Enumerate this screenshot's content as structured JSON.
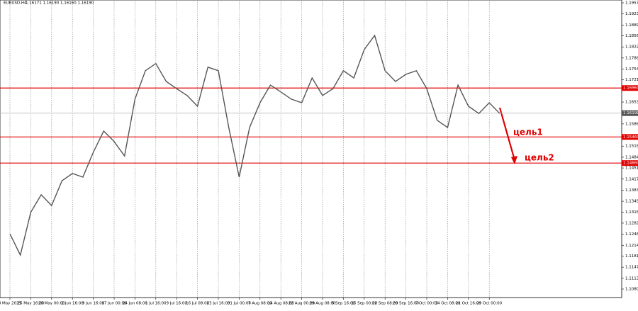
{
  "chart_data": {
    "type": "line",
    "title": "EURUSD,H4",
    "subtitle": "1.16171 1.16190 1.16160 1.16190",
    "color": "#555555",
    "categories": [
      "8 May 2025",
      null,
      "16 May 16:00",
      null,
      "26 May 00:00",
      null,
      "2 Jun 16:00",
      null,
      "9 Jun 16:00",
      null,
      "17 Jun 00:00",
      null,
      "24 Jun 08:00",
      null,
      "1 Jul 16:00",
      null,
      "9 Jul 16:00",
      null,
      "16 Jul 08:00",
      null,
      "23 Jul 16:00",
      null,
      "31 Jul 00:00",
      null,
      "7 Aug 08:00",
      null,
      "14 Aug 08:00",
      null,
      "22 Aug 00:00",
      null,
      "29 Aug 08:00",
      null,
      "5 Sep 16:00",
      null,
      "15 Sep 00:00",
      null,
      "22 Sep 08:00",
      null,
      "29 Sep 16:00",
      null,
      "7 Oct 00:00",
      null,
      "14 Oct 08:00",
      null,
      "21 Oct 16:00",
      null,
      "29 Oct 00:00",
      null
    ],
    "values": [
      1.1249,
      1.1184,
      1.1315,
      1.1369,
      1.1336,
      1.1412,
      1.1434,
      1.1423,
      1.1499,
      1.1564,
      1.1532,
      1.1488,
      1.1662,
      1.1749,
      1.1771,
      1.1716,
      1.1694,
      1.1673,
      1.164,
      1.176,
      1.1749,
      1.1575,
      1.1423,
      1.1575,
      1.1651,
      1.1705,
      1.1684,
      1.1662,
      1.1651,
      1.1727,
      1.1673,
      1.1694,
      1.1749,
      1.1727,
      1.1814,
      1.1857,
      1.1749,
      1.1716,
      1.1738,
      1.1749,
      1.1694,
      1.1597,
      1.1575,
      1.1705,
      1.164,
      1.1618,
      1.1651,
      1.1618
    ],
    "ylim": [
      1.108,
      1.1957
    ],
    "yticks": [
      {
        "value": 1.1957,
        "label": "1.19570"
      },
      {
        "value": 1.1923,
        "label": "1.19230"
      },
      {
        "value": 1.1889,
        "label": "1.18890"
      },
      {
        "value": 1.1856,
        "label": "1.18560"
      },
      {
        "value": 1.1822,
        "label": "1.18220"
      },
      {
        "value": 1.1788,
        "label": "1.17880"
      },
      {
        "value": 1.1754,
        "label": "1.17540"
      },
      {
        "value": 1.1721,
        "label": "1.17210"
      },
      {
        "value": 1.1653,
        "label": "1.16530"
      },
      {
        "value": 1.1586,
        "label": "1.15860"
      },
      {
        "value": 1.1518,
        "label": "1.15180"
      },
      {
        "value": 1.1484,
        "label": "1.14840"
      },
      {
        "value": 1.1451,
        "label": "1.14510"
      },
      {
        "value": 1.1417,
        "label": "1.14170"
      },
      {
        "value": 1.1383,
        "label": "1.13830"
      },
      {
        "value": 1.1349,
        "label": "1.13490"
      },
      {
        "value": 1.1316,
        "label": "1.13160"
      },
      {
        "value": 1.1282,
        "label": "1.12820"
      },
      {
        "value": 1.1248,
        "label": "1.12480"
      },
      {
        "value": 1.1214,
        "label": "1.12140"
      },
      {
        "value": 1.1181,
        "label": "1.11810"
      },
      {
        "value": 1.1147,
        "label": "1.11470"
      },
      {
        "value": 1.1113,
        "label": "1.11130"
      },
      {
        "value": 1.108,
        "label": "1.10800"
      }
    ],
    "levels": [
      {
        "value": 1.1696,
        "label": "1.16960"
      },
      {
        "value": 1.1546,
        "label": "1.15460"
      },
      {
        "value": 1.1466,
        "label": "1.14660"
      }
    ],
    "level_color": "#e00000",
    "current_price": {
      "value": 1.1619,
      "label": "1.16190"
    },
    "annotations": [
      "цель1",
      "цель2"
    ],
    "grid": true
  }
}
